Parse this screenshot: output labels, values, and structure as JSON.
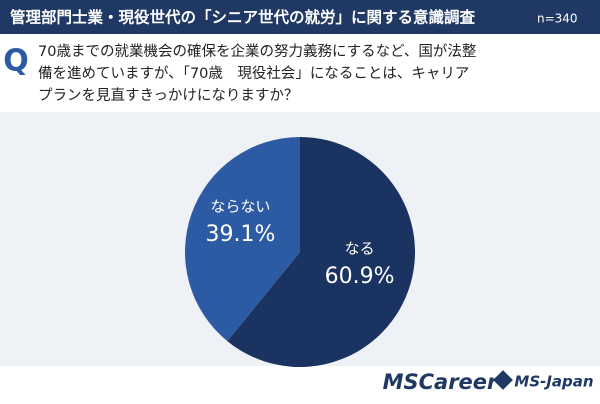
{
  "header": {
    "title": "管理部門士業・現役世代の「シニア世代の就労」に関する意識調査",
    "sample": "n=340"
  },
  "question": {
    "mark": "Q",
    "lines": [
      "70歳までの就業機会の確保を企業の努力義務にするなど、国が法整",
      "備を進めていますが、「70歳　現役社会」になることは、キャリア",
      "プランを見直すきっかけになりますか？"
    ]
  },
  "chart_data": {
    "type": "pie",
    "categories": [
      "なる",
      "ならない"
    ],
    "values": [
      60.9,
      39.1
    ],
    "value_labels": [
      "60.9%",
      "39.1%"
    ],
    "colors": [
      "#1b3360",
      "#2c5ba3"
    ]
  },
  "logos": [
    "MSCareer",
    "MS-Japan"
  ]
}
